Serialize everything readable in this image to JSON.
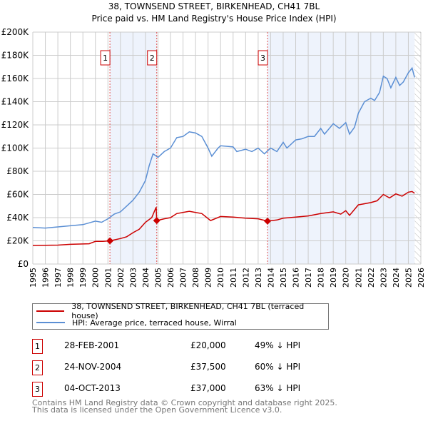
{
  "chart_data": {
    "type": "line",
    "title": "38, TOWNSEND STREET, BIRKENHEAD, CH41 7BL",
    "subtitle": "Price paid vs. HM Land Registry's House Price Index (HPI)",
    "xlim": [
      1995,
      2026
    ],
    "ylim": [
      0,
      200000
    ],
    "x_ticks": [
      "1995",
      "1996",
      "1997",
      "1998",
      "1999",
      "2000",
      "2001",
      "2002",
      "2003",
      "2004",
      "2005",
      "2006",
      "2007",
      "2008",
      "2009",
      "2010",
      "2011",
      "2012",
      "2013",
      "2014",
      "2015",
      "2016",
      "2017",
      "2018",
      "2019",
      "2020",
      "2021",
      "2022",
      "2023",
      "2024",
      "2025",
      "2026"
    ],
    "y_ticks": [
      "£0",
      "£20K",
      "£40K",
      "£60K",
      "£80K",
      "£100K",
      "£120K",
      "£140K",
      "£160K",
      "£180K",
      "£200K"
    ],
    "grid": true,
    "series": [
      {
        "name": "38, TOWNSEND STREET, BIRKENHEAD, CH41 7BL (terraced house)",
        "color": "#cc0000",
        "x": [
          1995,
          1997,
          1998,
          1999.5,
          2000,
          2000.6,
          2001.16,
          2002,
          2002.5,
          2003,
          2003.5,
          2004,
          2004.5,
          2004.85,
          2004.9,
          2005.5,
          2006,
          2006.5,
          2007.5,
          2008.5,
          2009.2,
          2010,
          2011,
          2012,
          2013,
          2013.75,
          2014.5,
          2015,
          2016,
          2017,
          2018,
          2019,
          2019.6,
          2020,
          2020.3,
          2021,
          2022,
          2022.5,
          2023,
          2023.5,
          2024,
          2024.5,
          2025,
          2025.3,
          2025.5
        ],
        "y": [
          16000,
          16300,
          17000,
          17500,
          19500,
          19500,
          20000,
          22000,
          23500,
          27000,
          30000,
          36000,
          40000,
          49000,
          37500,
          39000,
          40000,
          43500,
          45500,
          43500,
          37500,
          41000,
          40500,
          39500,
          39000,
          37000,
          38000,
          39500,
          40500,
          41500,
          43500,
          45000,
          43000,
          46000,
          42000,
          51000,
          53000,
          54500,
          60000,
          57000,
          60500,
          58500,
          62000,
          62500,
          61000
        ]
      },
      {
        "name": "HPI: Average price, terraced house, Wirral",
        "color": "#5b8fd4",
        "x": [
          1995,
          1996,
          1997,
          1998,
          1999,
          2000,
          2000.5,
          2001,
          2001.5,
          2002,
          2002.5,
          2003,
          2003.5,
          2004,
          2004.3,
          2004.6,
          2005,
          2005.5,
          2006,
          2006.5,
          2007,
          2007.5,
          2008,
          2008.5,
          2009,
          2009.3,
          2009.8,
          2010,
          2011,
          2011.3,
          2012,
          2012.5,
          2013,
          2013.5,
          2014,
          2014.5,
          2015,
          2015.3,
          2016,
          2016.5,
          2017,
          2017.5,
          2018,
          2018.3,
          2019,
          2019.5,
          2020,
          2020.3,
          2020.7,
          2021,
          2021.5,
          2022,
          2022.3,
          2022.7,
          2023,
          2023.3,
          2023.6,
          2024,
          2024.3,
          2024.6,
          2025,
          2025.3,
          2025.5
        ],
        "y": [
          31500,
          31000,
          32000,
          33000,
          34000,
          37000,
          36000,
          39000,
          43000,
          45000,
          50000,
          55000,
          62000,
          72000,
          85000,
          95000,
          92000,
          97000,
          100000,
          109000,
          110000,
          114000,
          113000,
          110000,
          100000,
          93000,
          100000,
          102000,
          101000,
          97000,
          99000,
          97000,
          100000,
          95000,
          100000,
          97000,
          105000,
          100000,
          107000,
          108000,
          110000,
          110000,
          117000,
          112000,
          121000,
          117000,
          122000,
          112000,
          118000,
          130000,
          140000,
          143000,
          141000,
          148000,
          162000,
          160000,
          152000,
          161000,
          154000,
          157000,
          165000,
          169000,
          161000
        ]
      }
    ],
    "markers": [
      {
        "label": "1",
        "x": 2001.16,
        "y": 20000
      },
      {
        "label": "2",
        "x": 2004.9,
        "y": 37500
      },
      {
        "label": "3",
        "x": 2013.75,
        "y": 37000
      }
    ],
    "shaded_ranges": [
      [
        2001.16,
        2004.9
      ],
      [
        2013.75,
        2025.5
      ]
    ],
    "hatched_from": 2025.5,
    "legend_position": "bottom"
  },
  "transactions": [
    {
      "num": "1",
      "date": "28-FEB-2001",
      "price": "£20,000",
      "pct": "49% ↓ HPI"
    },
    {
      "num": "2",
      "date": "24-NOV-2004",
      "price": "£37,500",
      "pct": "60% ↓ HPI"
    },
    {
      "num": "3",
      "date": "04-OCT-2013",
      "price": "£37,000",
      "pct": "63% ↓ HPI"
    }
  ],
  "footer": {
    "line1": "Contains HM Land Registry data © Crown copyright and database right 2025.",
    "line2": "This data is licensed under the Open Government Licence v3.0."
  }
}
